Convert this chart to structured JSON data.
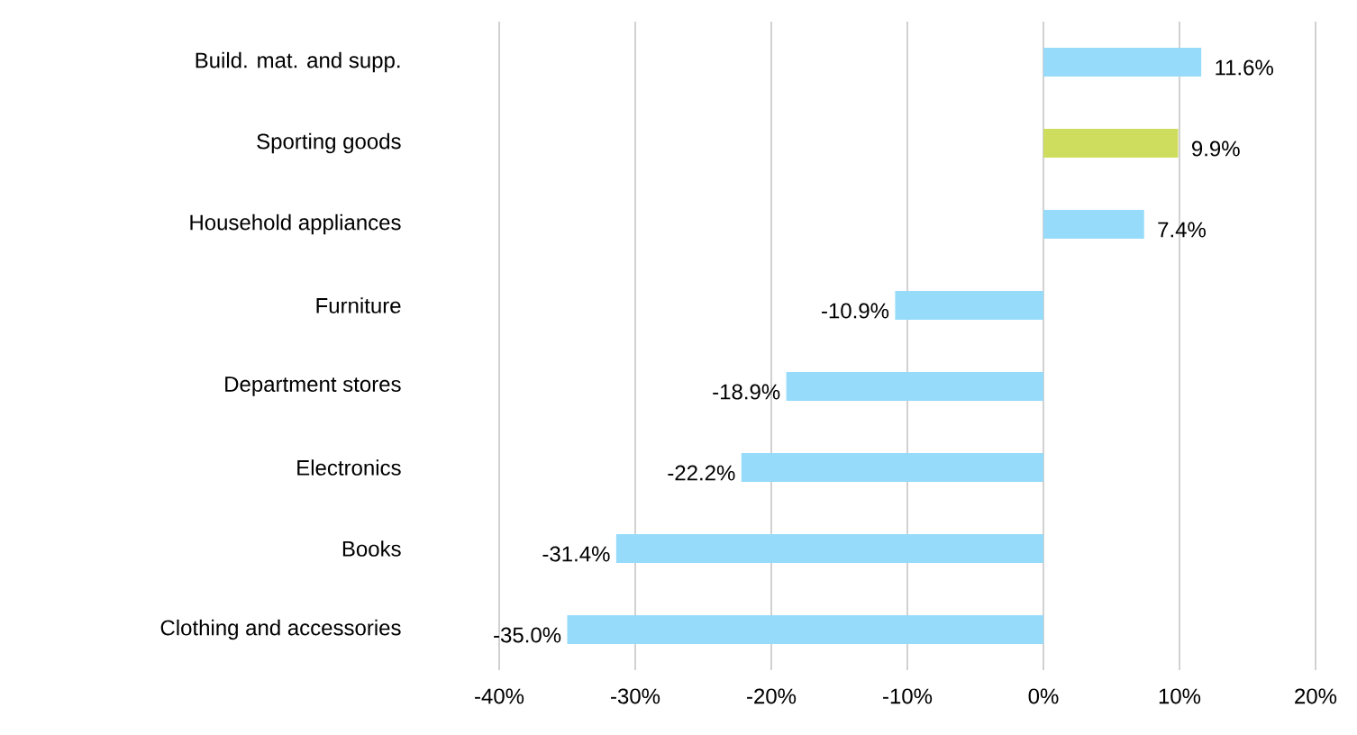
{
  "chart_data": {
    "type": "bar",
    "orientation": "horizontal",
    "categories": [
      "Build. mat. and supp.",
      "Sporting goods",
      "Household appliances",
      "Furniture",
      "Department stores",
      "Electronics",
      "Books",
      "Clothing and accessories"
    ],
    "values": [
      11.6,
      9.9,
      7.4,
      -10.9,
      -18.9,
      -22.2,
      -31.4,
      -35.0
    ],
    "value_labels": [
      "11.6%",
      "9.9%",
      "7.4%",
      "-10.9%",
      "-18.9%",
      "-22.2%",
      "-31.4%",
      "-35.0%"
    ],
    "colors": [
      "#97dbfa",
      "#cfdd5e",
      "#97dbfa",
      "#97dbfa",
      "#97dbfa",
      "#97dbfa",
      "#97dbfa",
      "#97dbfa"
    ],
    "xlim": [
      -40,
      20
    ],
    "xticks": [
      {
        "value": -40,
        "label": "-40%"
      },
      {
        "value": -30,
        "label": "-30%"
      },
      {
        "value": -20,
        "label": "-20%"
      },
      {
        "value": -10,
        "label": "-10%"
      },
      {
        "value": 0,
        "label": "0%"
      },
      {
        "value": 10,
        "label": "10%"
      },
      {
        "value": 20,
        "label": "20%"
      }
    ],
    "grid": "x"
  }
}
